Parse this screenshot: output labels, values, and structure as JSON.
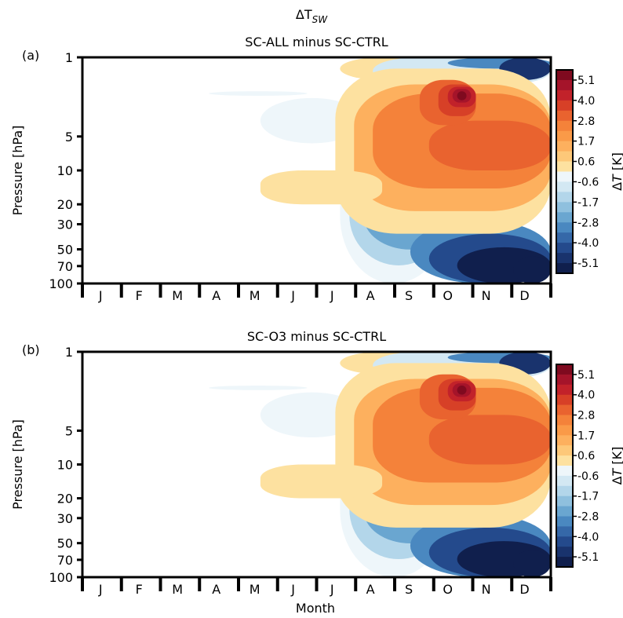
{
  "figure": {
    "supertitle_base": "ΔT",
    "supertitle_sub": "SW",
    "xlabel": "Month"
  },
  "colorbar": {
    "label_prefix": "Δ",
    "label_var": "T",
    "label_unit": " [K]",
    "ticks": [
      "5.1",
      "4.0",
      "2.8",
      "1.7",
      "0.6",
      "-0.6",
      "-1.7",
      "-2.8",
      "-4.0",
      "-5.1"
    ]
  },
  "colors": {
    "positive": [
      "#fde1a0",
      "#fdc879",
      "#fdb05e",
      "#fa9a48",
      "#f4823a",
      "#e9632f",
      "#d74027",
      "#c2222a",
      "#a5142a",
      "#7f0a1f"
    ],
    "negative": [
      "#eef6fa",
      "#d3e8f3",
      "#b3d6ea",
      "#8fc0de",
      "#6aa6d0",
      "#4a88c0",
      "#3568a8",
      "#244a8c",
      "#19336d",
      "#101f4d"
    ]
  },
  "chart_data": [
    {
      "type": "heatmap",
      "panel_label": "(a)",
      "title": "SC-ALL minus SC-CTRL",
      "xlabel": "Month",
      "ylabel": "Pressure [hPa]",
      "x_tick_labels": [
        "J",
        "F",
        "M",
        "A",
        "M",
        "J",
        "J",
        "A",
        "S",
        "O",
        "N",
        "D"
      ],
      "y_ticks": [
        1,
        5,
        10,
        20,
        30,
        50,
        70,
        100
      ],
      "y_scale": "log",
      "y_inverted": true,
      "ylim": [
        100,
        1
      ],
      "colorbar_ticks": [
        5.1,
        4.0,
        2.8,
        1.7,
        0.6,
        -0.6,
        -1.7,
        -2.8,
        -4.0,
        -5.1
      ],
      "colorbar_label": "ΔT [K]",
      "features": [
        {
          "month": "Oct",
          "pressure_hPa": 2.3,
          "dT_K": 5.1
        },
        {
          "month": "Nov-Dec",
          "pressure_hPa": 6,
          "dT_K": 2.5
        },
        {
          "month": "Dec",
          "pressure_hPa": 1.3,
          "dT_K": -4.0
        },
        {
          "month": "Nov-Dec",
          "pressure_hPa": 70,
          "dT_K": -5.1
        },
        {
          "month": "Oct",
          "pressure_hPa": 30,
          "dT_K": -2.0
        },
        {
          "month": "May-Aug",
          "pressure_hPa": 15,
          "dT_K": 0.6
        },
        {
          "month": "Aug",
          "pressure_hPa": 1.1,
          "dT_K": 0.6
        }
      ]
    },
    {
      "type": "heatmap",
      "panel_label": "(b)",
      "title": "SC-O3 minus SC-CTRL",
      "xlabel": "Month",
      "ylabel": "Pressure [hPa]",
      "x_tick_labels": [
        "J",
        "F",
        "M",
        "A",
        "M",
        "J",
        "J",
        "A",
        "S",
        "O",
        "N",
        "D"
      ],
      "y_ticks": [
        1,
        5,
        10,
        20,
        30,
        50,
        70,
        100
      ],
      "y_scale": "log",
      "y_inverted": true,
      "ylim": [
        100,
        1
      ],
      "colorbar_ticks": [
        5.1,
        4.0,
        2.8,
        1.7,
        0.6,
        -0.6,
        -1.7,
        -2.8,
        -4.0,
        -5.1
      ],
      "colorbar_label": "ΔT [K]",
      "features": [
        {
          "month": "Oct",
          "pressure_hPa": 2.3,
          "dT_K": 5.1
        },
        {
          "month": "Nov-Dec",
          "pressure_hPa": 6,
          "dT_K": 2.5
        },
        {
          "month": "Dec",
          "pressure_hPa": 1.3,
          "dT_K": -4.0
        },
        {
          "month": "Nov-Dec",
          "pressure_hPa": 70,
          "dT_K": -5.1
        },
        {
          "month": "Oct",
          "pressure_hPa": 30,
          "dT_K": -2.0
        },
        {
          "month": "May-Aug",
          "pressure_hPa": 15,
          "dT_K": 0.6
        },
        {
          "month": "Aug",
          "pressure_hPa": 1.1,
          "dT_K": 0.6
        }
      ]
    }
  ]
}
